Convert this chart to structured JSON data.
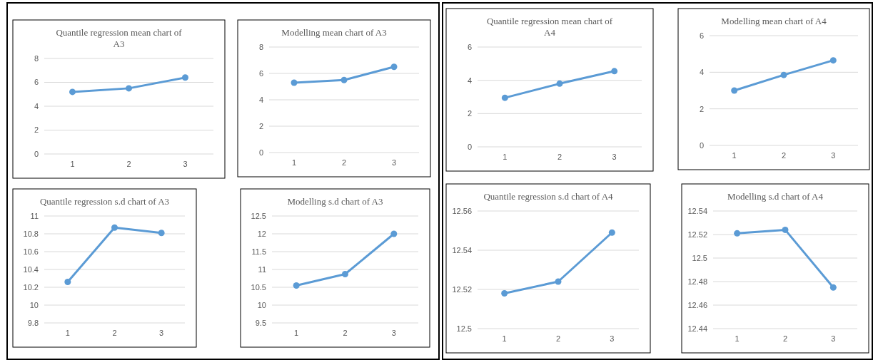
{
  "chart_data": [
    {
      "type": "line",
      "title": "Quantile regression mean chart of A3",
      "categories": [
        "1",
        "2",
        "3"
      ],
      "series": [
        {
          "color": "#5b9bd5",
          "values": [
            5.2,
            5.5,
            6.4
          ]
        }
      ],
      "ylim": [
        0,
        8
      ],
      "yticks": [
        0,
        2,
        4,
        6,
        8
      ],
      "grid": "y",
      "marker": "circle",
      "line_style": "solid"
    },
    {
      "type": "line",
      "title": "Modelling mean chart of A3",
      "categories": [
        "1",
        "2",
        "3"
      ],
      "series": [
        {
          "color": "#5b9bd5",
          "values": [
            5.3,
            5.5,
            6.5
          ]
        }
      ],
      "ylim": [
        0,
        8
      ],
      "yticks": [
        0,
        2,
        4,
        6,
        8
      ],
      "grid": "y",
      "marker": "circle",
      "line_style": "solid"
    },
    {
      "type": "line",
      "title": "Quantile regression s.d chart of A3",
      "categories": [
        "1",
        "2",
        "3"
      ],
      "series": [
        {
          "color": "#5b9bd5",
          "values": [
            10.26,
            10.87,
            10.81
          ]
        }
      ],
      "ylim": [
        9.8,
        11
      ],
      "yticks": [
        9.8,
        10,
        10.2,
        10.4,
        10.6,
        10.8,
        11
      ],
      "grid": "y",
      "marker": "circle",
      "line_style": "solid"
    },
    {
      "type": "line",
      "title": "Modelling s.d chart of A3",
      "categories": [
        "1",
        "2",
        "3"
      ],
      "series": [
        {
          "color": "#5b9bd5",
          "values": [
            10.55,
            10.87,
            12.0
          ]
        }
      ],
      "ylim": [
        9.5,
        12.5
      ],
      "yticks": [
        9.5,
        10,
        10.5,
        11,
        11.5,
        12,
        12.5
      ],
      "grid": "y",
      "marker": "circle",
      "line_style": "solid"
    },
    {
      "type": "line",
      "title": "Quantile regression mean chart of A4",
      "categories": [
        "1",
        "2",
        "3"
      ],
      "series": [
        {
          "color": "#5b9bd5",
          "values": [
            2.95,
            3.8,
            4.55
          ]
        }
      ],
      "ylim": [
        0,
        6
      ],
      "yticks": [
        0,
        2,
        4,
        6
      ],
      "grid": "y",
      "marker": "circle",
      "line_style": "solid"
    },
    {
      "type": "line",
      "title": "Modelling mean chart of A4",
      "categories": [
        "1",
        "2",
        "3"
      ],
      "series": [
        {
          "color": "#5b9bd5",
          "values": [
            3.0,
            3.85,
            4.65
          ]
        }
      ],
      "ylim": [
        0,
        6
      ],
      "yticks": [
        0,
        2,
        4,
        6
      ],
      "grid": "y",
      "marker": "circle",
      "line_style": "solid"
    },
    {
      "type": "line",
      "title": "Quantile regression s.d chart of A4",
      "categories": [
        "1",
        "2",
        "3"
      ],
      "series": [
        {
          "color": "#5b9bd5",
          "values": [
            12.518,
            12.524,
            12.549
          ]
        }
      ],
      "ylim": [
        12.5,
        12.56
      ],
      "yticks": [
        12.5,
        12.52,
        12.54,
        12.56
      ],
      "grid": "y",
      "marker": "circle",
      "line_style": "solid"
    },
    {
      "type": "line",
      "title": "Modelling s.d chart of A4",
      "categories": [
        "1",
        "2",
        "3"
      ],
      "series": [
        {
          "color": "#5b9bd5",
          "values": [
            12.521,
            12.524,
            12.475
          ]
        }
      ],
      "ylim": [
        12.44,
        12.54
      ],
      "yticks": [
        12.44,
        12.46,
        12.48,
        12.5,
        12.52,
        12.54
      ],
      "grid": "y",
      "marker": "circle",
      "line_style": "solid"
    }
  ]
}
